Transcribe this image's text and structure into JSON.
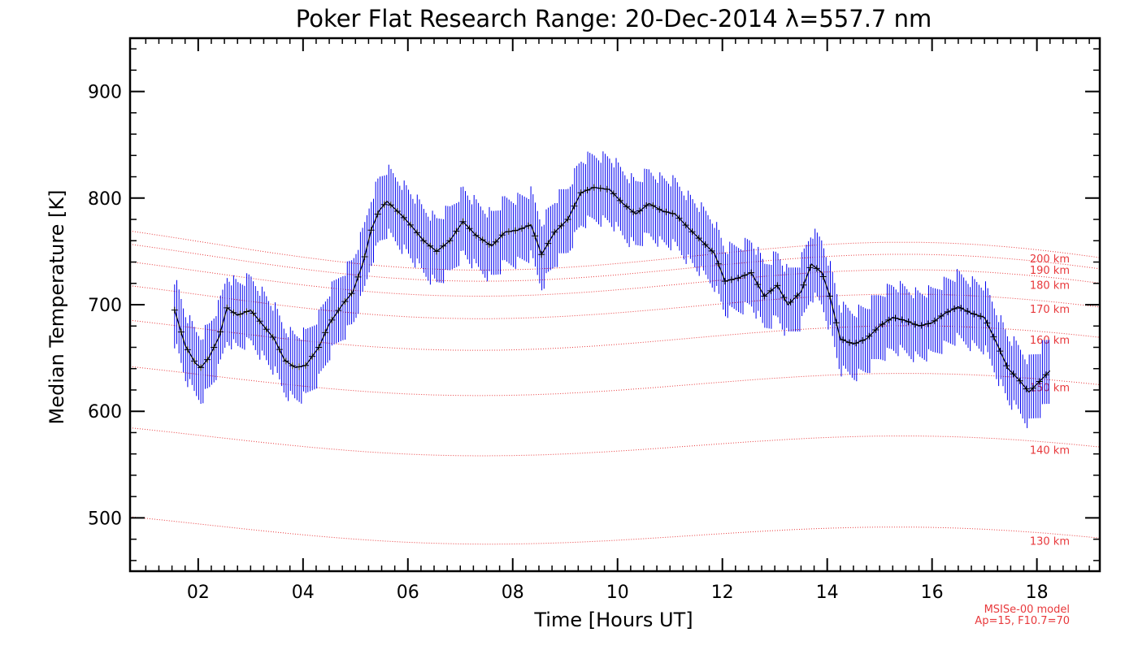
{
  "chart_data": {
    "type": "line",
    "title": "Poker Flat Research Range: 20-Dec-2014 λ=557.7 nm",
    "xlabel": "Time [Hours UT]",
    "ylabel": "Median Temperature [K]",
    "xlim": [
      0.7,
      19.2
    ],
    "ylim": [
      450,
      950
    ],
    "xticks": [
      2,
      4,
      6,
      8,
      10,
      12,
      14,
      16,
      18
    ],
    "xtick_labels": [
      "02",
      "04",
      "06",
      "08",
      "10",
      "12",
      "14",
      "16",
      "18"
    ],
    "yticks": [
      500,
      600,
      700,
      800,
      900
    ],
    "ytick_labels": [
      "500",
      "600",
      "700",
      "800",
      "900"
    ],
    "grid": false,
    "colors": {
      "measurement": "#000000",
      "error_bars": "#0000ee",
      "model": "#e8383b"
    },
    "series": [
      {
        "kind": "median_temperature",
        "style": "black line with plus markers and blue vertical error bars",
        "error_bar_halfwidth_K": 30,
        "points": [
          [
            1.55,
            695
          ],
          [
            1.75,
            662
          ],
          [
            1.95,
            645
          ],
          [
            2.05,
            641
          ],
          [
            2.2,
            650
          ],
          [
            2.4,
            670
          ],
          [
            2.55,
            697
          ],
          [
            2.75,
            690
          ],
          [
            3.0,
            695
          ],
          [
            3.25,
            680
          ],
          [
            3.45,
            668
          ],
          [
            3.65,
            648
          ],
          [
            3.85,
            641
          ],
          [
            4.05,
            643
          ],
          [
            4.3,
            660
          ],
          [
            4.5,
            682
          ],
          [
            4.75,
            700
          ],
          [
            4.95,
            712
          ],
          [
            5.15,
            740
          ],
          [
            5.3,
            770
          ],
          [
            5.45,
            788
          ],
          [
            5.6,
            797
          ],
          [
            5.75,
            790
          ],
          [
            5.9,
            783
          ],
          [
            6.1,
            772
          ],
          [
            6.3,
            760
          ],
          [
            6.55,
            750
          ],
          [
            6.8,
            760
          ],
          [
            7.05,
            778
          ],
          [
            7.3,
            765
          ],
          [
            7.6,
            755
          ],
          [
            7.85,
            768
          ],
          [
            8.1,
            770
          ],
          [
            8.35,
            775
          ],
          [
            8.55,
            747
          ],
          [
            8.8,
            768
          ],
          [
            9.05,
            780
          ],
          [
            9.3,
            805
          ],
          [
            9.55,
            810
          ],
          [
            9.85,
            808
          ],
          [
            10.1,
            795
          ],
          [
            10.35,
            785
          ],
          [
            10.6,
            795
          ],
          [
            10.85,
            788
          ],
          [
            11.1,
            785
          ],
          [
            11.35,
            772
          ],
          [
            11.6,
            760
          ],
          [
            11.85,
            748
          ],
          [
            12.05,
            722
          ],
          [
            12.3,
            725
          ],
          [
            12.55,
            730
          ],
          [
            12.8,
            708
          ],
          [
            13.05,
            718
          ],
          [
            13.25,
            700
          ],
          [
            13.5,
            712
          ],
          [
            13.7,
            738
          ],
          [
            13.9,
            730
          ],
          [
            14.05,
            708
          ],
          [
            14.25,
            668
          ],
          [
            14.5,
            663
          ],
          [
            14.75,
            668
          ],
          [
            15.0,
            680
          ],
          [
            15.25,
            688
          ],
          [
            15.5,
            685
          ],
          [
            15.75,
            680
          ],
          [
            16.0,
            683
          ],
          [
            16.25,
            692
          ],
          [
            16.5,
            698
          ],
          [
            16.75,
            692
          ],
          [
            17.0,
            688
          ],
          [
            17.25,
            662
          ],
          [
            17.45,
            640
          ],
          [
            17.65,
            630
          ],
          [
            17.85,
            618
          ],
          [
            18.05,
            628
          ],
          [
            18.25,
            638
          ]
        ]
      }
    ],
    "model_curves": [
      {
        "label": "130 km",
        "start": 495,
        "end": 475
      },
      {
        "label": "140 km",
        "start": 578,
        "end": 560
      },
      {
        "label": "150 km",
        "start": 635,
        "end": 618
      },
      {
        "label": "160 km",
        "start": 678,
        "end": 662
      },
      {
        "label": "170 km",
        "start": 710,
        "end": 690
      },
      {
        "label": "180 km",
        "start": 732,
        "end": 712
      },
      {
        "label": "190 km",
        "start": 748,
        "end": 725
      },
      {
        "label": "200 km",
        "start": 760,
        "end": 735
      }
    ],
    "annotation": [
      "MSISe-00 model",
      "Ap=15, F10.7=70"
    ]
  }
}
